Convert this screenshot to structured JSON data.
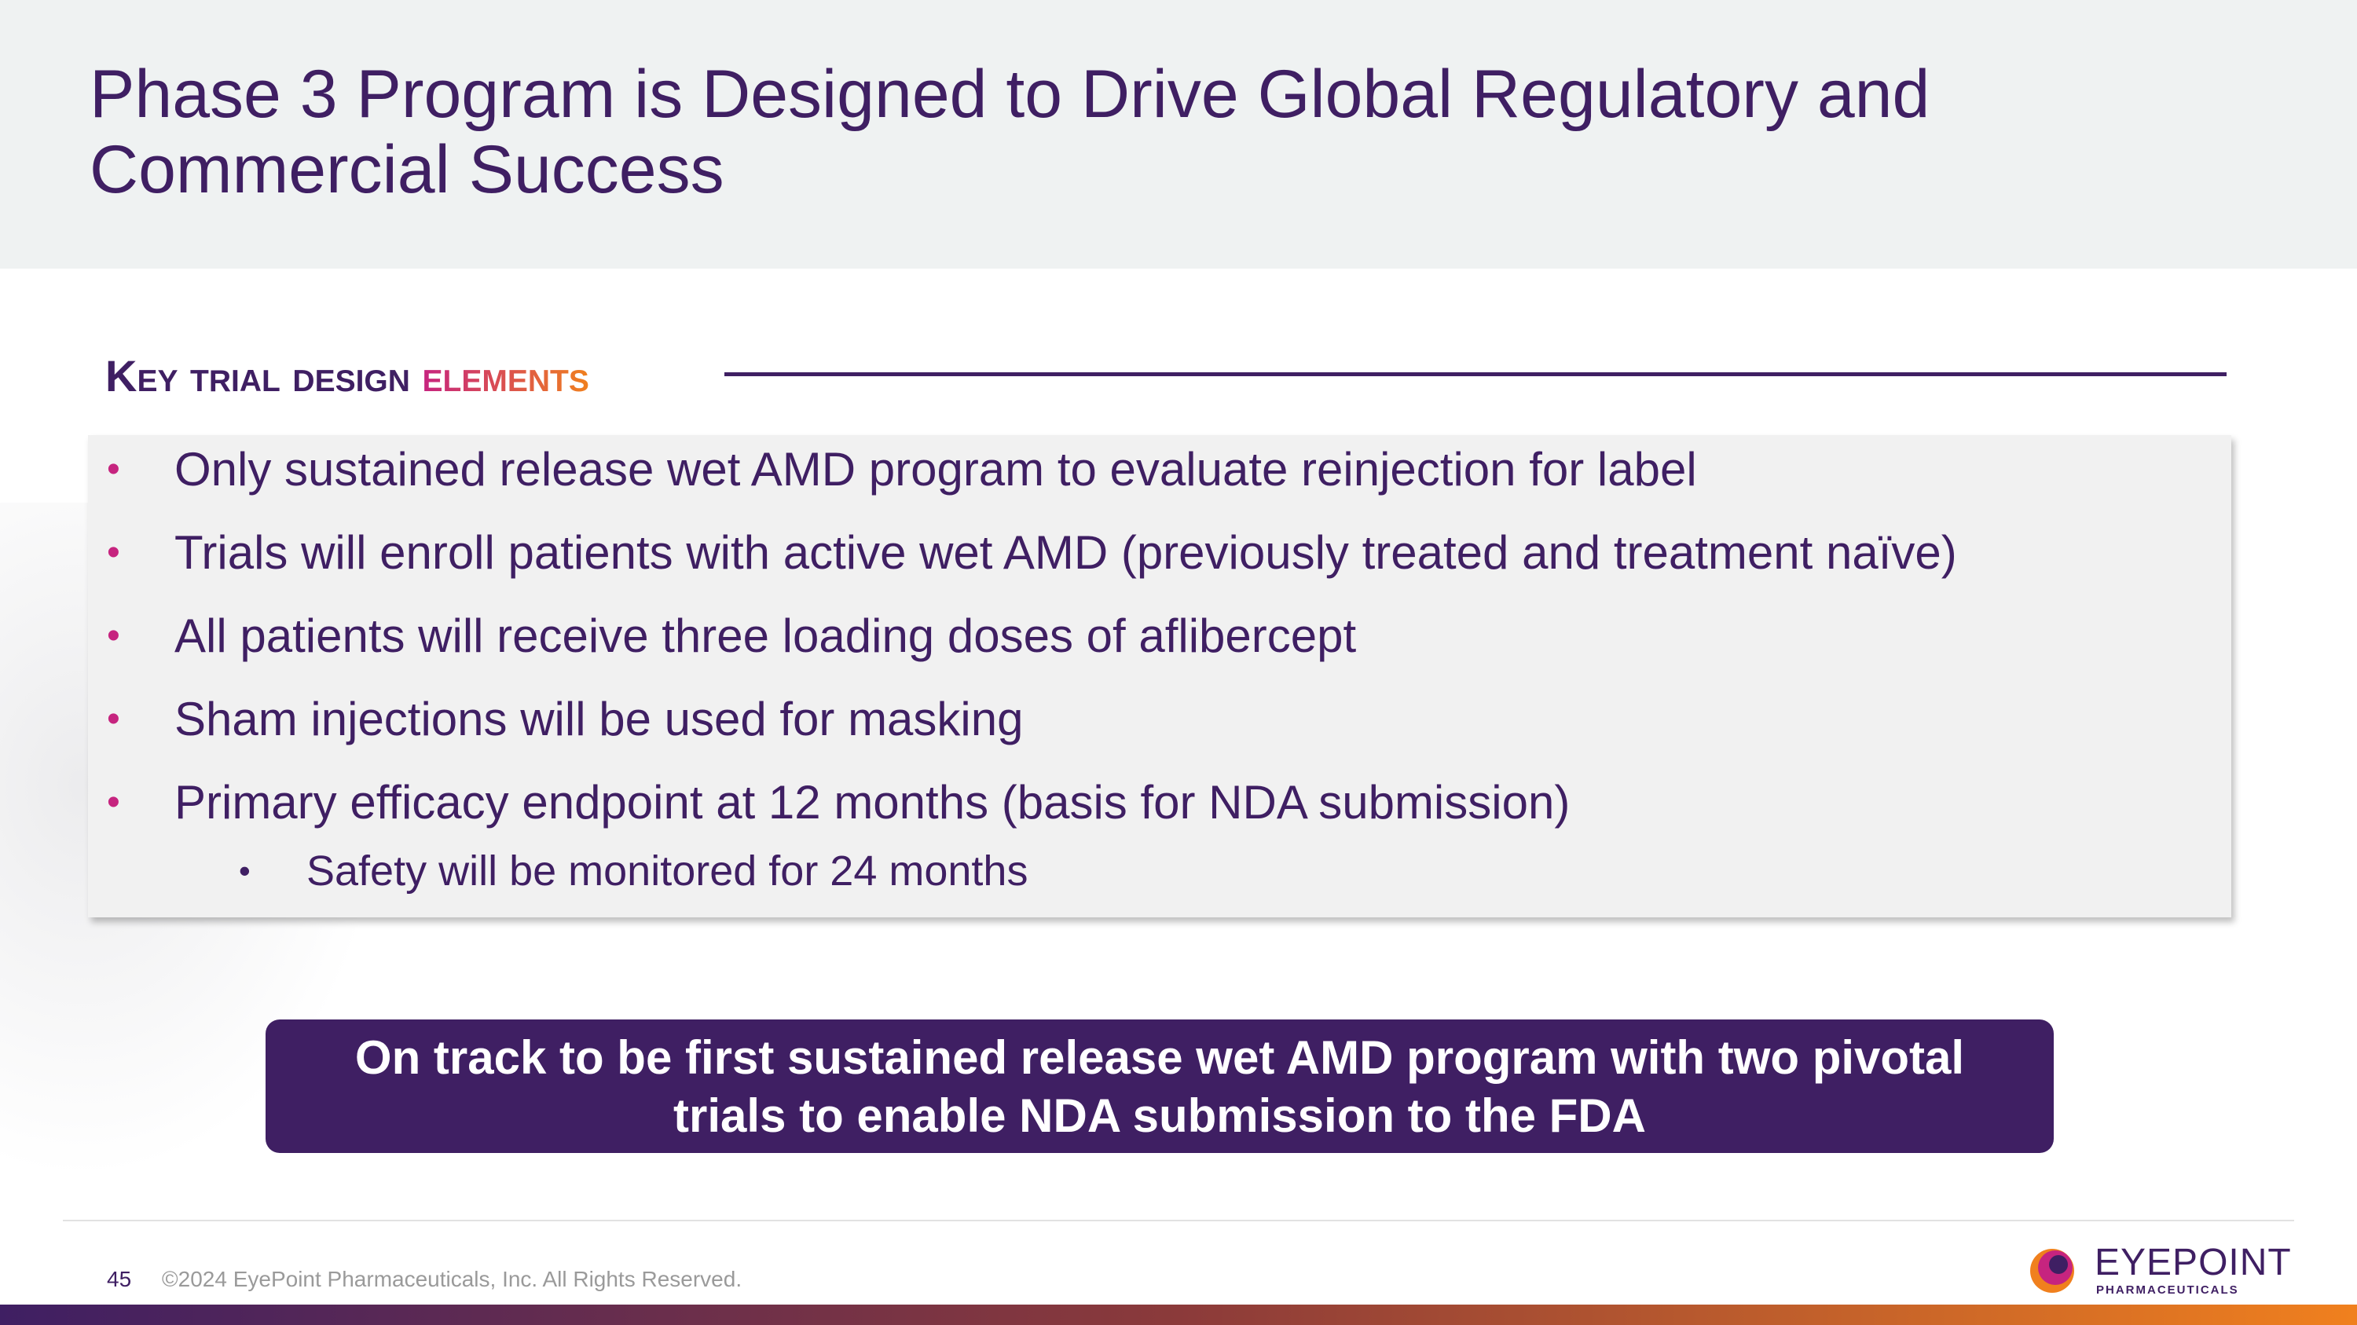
{
  "header": {
    "title_line1": "Phase 3 Program is Designed to Drive Global Regulatory and",
    "title_line2": "Commercial Success"
  },
  "section": {
    "heading_word1": "Key",
    "heading_word2": "trial",
    "heading_word3": "design",
    "heading_word4": "elements"
  },
  "bullets": [
    "Only sustained release wet AMD program to evaluate reinjection for label",
    "Trials will enroll patients with active wet AMD (previously treated and treatment naïve)",
    "All patients will receive three loading doses of aflibercept",
    "Sham injections will be used for masking",
    "Primary efficacy endpoint at 12 months (basis for NDA submission)"
  ],
  "sub_bullets": [
    "Safety will be monitored for 24 months"
  ],
  "bullet_glyph": "•",
  "callout": {
    "line1": "On track to be first sustained release wet AMD program with two pivotal",
    "line2": "trials to enable NDA submission to the FDA"
  },
  "footer": {
    "page_number": "45",
    "copyright": "©2024 EyePoint Pharmaceuticals, Inc. All Rights Reserved."
  },
  "logo": {
    "wordmark": "EYEPOINT",
    "subtitle": "PHARMACEUTICALS"
  },
  "colors": {
    "brand_purple": "#3f1f63",
    "bullet_magenta": "#c6247f",
    "accent_orange": "#f0801e",
    "header_band": "#eff2f2"
  }
}
